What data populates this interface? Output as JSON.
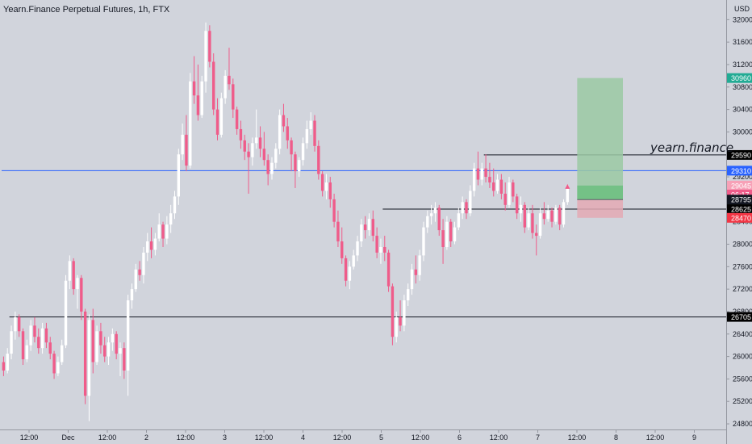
{
  "chart_data": {
    "type": "candlestick",
    "title": "Yearn.Finance Perpetual Futures, 1h, FTX",
    "currency": "USD",
    "annotation": "yearn.finance",
    "ylim": [
      24700,
      32350
    ],
    "y_ticks": [
      24800,
      25200,
      25600,
      26000,
      26400,
      26800,
      27200,
      27600,
      28000,
      28400,
      28800,
      29200,
      29600,
      30000,
      30400,
      30800,
      31200,
      31600,
      32000
    ],
    "x_ticks": [
      "12:00",
      "Dec",
      "12:00",
      "2",
      "12:00",
      "3",
      "12:00",
      "4",
      "12:00",
      "5",
      "12:00",
      "6",
      "12:00",
      "7",
      "12:00",
      "8",
      "12:00",
      "9"
    ],
    "price_labels": [
      {
        "text": "30960",
        "value": 30960,
        "color": "#22ab94"
      },
      {
        "text": "29590",
        "value": 29590,
        "color": "#000000"
      },
      {
        "text": "29310",
        "value": 29310,
        "color": "#2962ff"
      },
      {
        "text": "29045",
        "value": 29045,
        "color": "#f7a1b7"
      },
      {
        "text": "06:17",
        "value": 28885,
        "color": "#ef5c8a"
      },
      {
        "text": "28795",
        "value": 28795,
        "color": "#131722"
      },
      {
        "text": "28625",
        "value": 28625,
        "color": "#000000"
      },
      {
        "text": "28470",
        "value": 28470,
        "color": "#f23645"
      },
      {
        "text": "26705",
        "value": 26705,
        "color": "#000000"
      }
    ],
    "horizontal_lines": [
      {
        "value": 29310,
        "color": "#2962ff",
        "from_bar": 0
      },
      {
        "value": 26705,
        "color": "#131722",
        "from_bar": 2
      },
      {
        "value": 28625,
        "color": "#131722",
        "from_bar": 98
      },
      {
        "value": 29590,
        "color": "#131722",
        "from_bar": 124
      }
    ],
    "position": {
      "entry": 28795,
      "target": 30960,
      "stop": 28470,
      "current": 29045,
      "from_bar": 148,
      "to_bar": 180
    },
    "ohlc": [
      [
        25900,
        26000,
        25650,
        25750
      ],
      [
        25750,
        26150,
        25700,
        26050
      ],
      [
        26050,
        26550,
        25950,
        26450
      ],
      [
        26450,
        26800,
        26300,
        26700
      ],
      [
        26700,
        26750,
        26350,
        26450
      ],
      [
        26450,
        26500,
        25850,
        25950
      ],
      [
        25950,
        26300,
        25900,
        26200
      ],
      [
        26200,
        26650,
        26100,
        26550
      ],
      [
        26550,
        26700,
        26250,
        26350
      ],
      [
        26350,
        26500,
        26050,
        26150
      ],
      [
        26150,
        26600,
        26050,
        26500
      ],
      [
        26500,
        26600,
        26150,
        26250
      ],
      [
        26250,
        26350,
        25950,
        26050
      ],
      [
        26050,
        26100,
        25600,
        25700
      ],
      [
        25700,
        26000,
        25650,
        25900
      ],
      [
        25900,
        26300,
        25850,
        26200
      ],
      [
        26200,
        27450,
        26150,
        27350
      ],
      [
        27350,
        27800,
        27200,
        27700
      ],
      [
        27700,
        27750,
        27100,
        27200
      ],
      [
        27200,
        27450,
        26850,
        27400
      ],
      [
        27400,
        27450,
        26650,
        26800
      ],
      [
        26800,
        26850,
        25150,
        25300
      ],
      [
        25300,
        26750,
        24850,
        26650
      ],
      [
        26650,
        26850,
        25700,
        25900
      ],
      [
        25900,
        26550,
        25850,
        26450
      ],
      [
        26450,
        26600,
        26050,
        26200
      ],
      [
        26200,
        26350,
        25900,
        26000
      ],
      [
        26000,
        26350,
        25850,
        26250
      ],
      [
        26250,
        26500,
        26100,
        26400
      ],
      [
        26400,
        26450,
        25950,
        26050
      ],
      [
        26050,
        26250,
        25650,
        26150
      ],
      [
        26150,
        26250,
        25600,
        25750
      ],
      [
        25750,
        27100,
        25300,
        27000
      ],
      [
        27000,
        27300,
        26850,
        27200
      ],
      [
        27200,
        27650,
        27150,
        27550
      ],
      [
        27550,
        27700,
        27350,
        27450
      ],
      [
        27450,
        27950,
        27300,
        27850
      ],
      [
        27850,
        28200,
        27700,
        28050
      ],
      [
        28050,
        28300,
        27750,
        27900
      ],
      [
        27900,
        28200,
        27800,
        28100
      ],
      [
        28100,
        28550,
        28050,
        28350
      ],
      [
        28350,
        28400,
        27950,
        28100
      ],
      [
        28100,
        28500,
        28000,
        28350
      ],
      [
        28350,
        28700,
        28200,
        28550
      ],
      [
        28550,
        28950,
        28450,
        28850
      ],
      [
        28850,
        29700,
        28700,
        29600
      ],
      [
        29600,
        30150,
        29500,
        29950
      ],
      [
        29950,
        30300,
        29300,
        29400
      ],
      [
        29400,
        31050,
        29350,
        30900
      ],
      [
        30900,
        31350,
        30500,
        30650
      ],
      [
        30650,
        31200,
        30200,
        30300
      ],
      [
        30300,
        31000,
        30250,
        30900
      ],
      [
        30900,
        31950,
        30700,
        31800
      ],
      [
        31800,
        31900,
        31150,
        31250
      ],
      [
        31250,
        31400,
        30300,
        30400
      ],
      [
        30400,
        30600,
        29850,
        29950
      ],
      [
        29950,
        30700,
        29900,
        30600
      ],
      [
        30600,
        31100,
        30500,
        31000
      ],
      [
        31000,
        31500,
        30750,
        30850
      ],
      [
        30850,
        30950,
        30250,
        30400
      ],
      [
        30400,
        30450,
        29950,
        30050
      ],
      [
        30050,
        30200,
        29700,
        29850
      ],
      [
        29850,
        29950,
        29500,
        29650
      ],
      [
        29650,
        29800,
        28900,
        29550
      ],
      [
        29550,
        29900,
        29400,
        29800
      ],
      [
        29800,
        30400,
        29700,
        29900
      ],
      [
        29900,
        30100,
        29550,
        29700
      ],
      [
        29700,
        30000,
        29400,
        29500
      ],
      [
        29500,
        29600,
        29050,
        29250
      ],
      [
        29250,
        29550,
        29150,
        29450
      ],
      [
        29450,
        29800,
        29350,
        29700
      ],
      [
        29700,
        30400,
        29600,
        30300
      ],
      [
        30300,
        30500,
        30000,
        30100
      ],
      [
        30100,
        30250,
        29700,
        29850
      ],
      [
        29850,
        29900,
        29300,
        29600
      ],
      [
        29600,
        29650,
        29000,
        29300
      ],
      [
        29300,
        29550,
        29200,
        29500
      ],
      [
        29500,
        29900,
        29400,
        29800
      ],
      [
        29800,
        30200,
        29700,
        30050
      ],
      [
        30050,
        30350,
        29950,
        30200
      ],
      [
        30200,
        30300,
        29650,
        29750
      ],
      [
        29750,
        29850,
        29150,
        29250
      ],
      [
        29250,
        29300,
        28850,
        28950
      ],
      [
        28950,
        29250,
        28800,
        29100
      ],
      [
        29100,
        29200,
        28650,
        28800
      ],
      [
        28800,
        28900,
        28300,
        28400
      ],
      [
        28400,
        28600,
        27950,
        28050
      ],
      [
        28050,
        28300,
        27650,
        27750
      ],
      [
        27750,
        27800,
        27250,
        27350
      ],
      [
        27350,
        27700,
        27200,
        27600
      ],
      [
        27600,
        27900,
        27550,
        27800
      ],
      [
        27800,
        28150,
        27700,
        28050
      ],
      [
        28050,
        28450,
        27950,
        28350
      ],
      [
        28350,
        28500,
        28100,
        28250
      ],
      [
        28250,
        28550,
        28150,
        28450
      ],
      [
        28450,
        28600,
        28050,
        28150
      ],
      [
        28150,
        28300,
        27750,
        27850
      ],
      [
        27850,
        28100,
        27650,
        27950
      ],
      [
        27950,
        28150,
        27700,
        27850
      ],
      [
        27850,
        27900,
        27150,
        27250
      ],
      [
        27250,
        27300,
        26200,
        26350
      ],
      [
        26350,
        26800,
        26250,
        26700
      ],
      [
        26700,
        27000,
        26450,
        26550
      ],
      [
        26550,
        27100,
        26450,
        27000
      ],
      [
        27000,
        27300,
        26900,
        27200
      ],
      [
        27200,
        27650,
        27100,
        27550
      ],
      [
        27550,
        27800,
        27300,
        27450
      ],
      [
        27450,
        27900,
        27350,
        27800
      ],
      [
        27800,
        28400,
        27700,
        28300
      ],
      [
        28300,
        28600,
        28200,
        28500
      ],
      [
        28500,
        28700,
        28350,
        28550
      ],
      [
        28550,
        28750,
        28400,
        28650
      ],
      [
        28650,
        28700,
        28150,
        28250
      ],
      [
        28250,
        28450,
        27650,
        27950
      ],
      [
        27950,
        28500,
        27900,
        28400
      ],
      [
        28400,
        28450,
        27950,
        28050
      ],
      [
        28050,
        28400,
        28000,
        28300
      ],
      [
        28300,
        28650,
        28250,
        28550
      ],
      [
        28550,
        28850,
        28450,
        28750
      ],
      [
        28750,
        28800,
        28450,
        28550
      ],
      [
        28550,
        29050,
        28500,
        28950
      ],
      [
        28950,
        29450,
        28850,
        29350
      ],
      [
        29350,
        29650,
        29050,
        29150
      ],
      [
        29150,
        29450,
        29050,
        29350
      ],
      [
        29350,
        29600,
        29100,
        29200
      ],
      [
        29200,
        29450,
        29000,
        29100
      ],
      [
        29100,
        29350,
        28850,
        28950
      ],
      [
        28950,
        29250,
        28900,
        29150
      ],
      [
        29150,
        29250,
        28800,
        28900
      ],
      [
        28900,
        29100,
        28600,
        28700
      ],
      [
        28700,
        29200,
        28650,
        29100
      ],
      [
        29100,
        29150,
        28750,
        28850
      ],
      [
        28850,
        28900,
        28450,
        28550
      ],
      [
        28550,
        28850,
        28400,
        28700
      ],
      [
        28700,
        28750,
        28200,
        28300
      ],
      [
        28300,
        28650,
        28250,
        28550
      ],
      [
        28550,
        28700,
        28100,
        28200
      ],
      [
        28200,
        28350,
        27800,
        28150
      ],
      [
        28150,
        28650,
        28100,
        28550
      ],
      [
        28550,
        28750,
        28350,
        28450
      ],
      [
        28450,
        28700,
        28400,
        28600
      ],
      [
        28600,
        28650,
        28300,
        28400
      ],
      [
        28400,
        28700,
        28350,
        28650
      ],
      [
        28650,
        28700,
        28250,
        28350
      ],
      [
        28350,
        28800,
        28300,
        28750
      ],
      [
        28750,
        29050,
        28700,
        29045
      ]
    ]
  }
}
